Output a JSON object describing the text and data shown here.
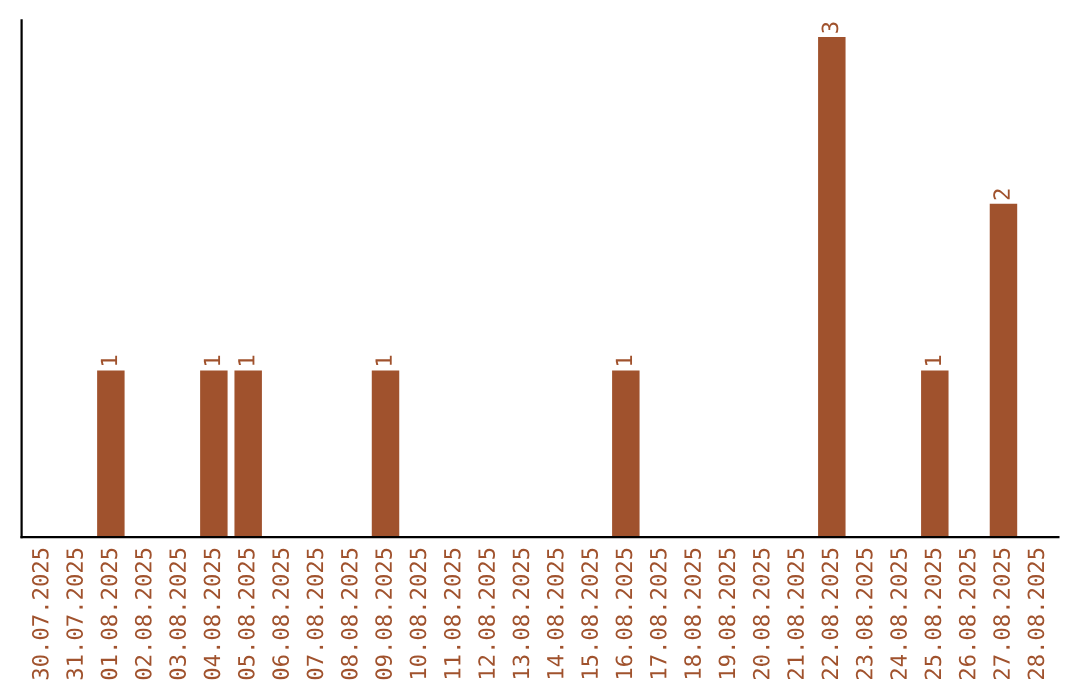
{
  "chart_data": {
    "type": "bar",
    "categories": [
      "30.07.2025",
      "31.07.2025",
      "01.08.2025",
      "02.08.2025",
      "03.08.2025",
      "04.08.2025",
      "05.08.2025",
      "06.08.2025",
      "07.08.2025",
      "08.08.2025",
      "09.08.2025",
      "10.08.2025",
      "11.08.2025",
      "12.08.2025",
      "13.08.2025",
      "14.08.2025",
      "15.08.2025",
      "16.08.2025",
      "17.08.2025",
      "18.08.2025",
      "19.08.2025",
      "20.08.2025",
      "21.08.2025",
      "22.08.2025",
      "23.08.2025",
      "24.08.2025",
      "25.08.2025",
      "26.08.2025",
      "27.08.2025",
      "28.08.2025"
    ],
    "values": [
      0,
      0,
      1,
      0,
      0,
      1,
      1,
      0,
      0,
      0,
      1,
      0,
      0,
      0,
      0,
      0,
      0,
      1,
      0,
      0,
      0,
      0,
      0,
      3,
      0,
      0,
      1,
      0,
      2,
      0
    ],
    "value_labels": [
      null,
      null,
      "1",
      null,
      null,
      "1",
      "1",
      null,
      null,
      null,
      "1",
      null,
      null,
      null,
      null,
      null,
      null,
      "1",
      null,
      null,
      null,
      null,
      null,
      "3",
      null,
      null,
      "1",
      null,
      "2",
      null
    ],
    "color": "#a0522d",
    "ylim": [
      0,
      3.1
    ],
    "tick_labels": "x",
    "grid": false
  }
}
